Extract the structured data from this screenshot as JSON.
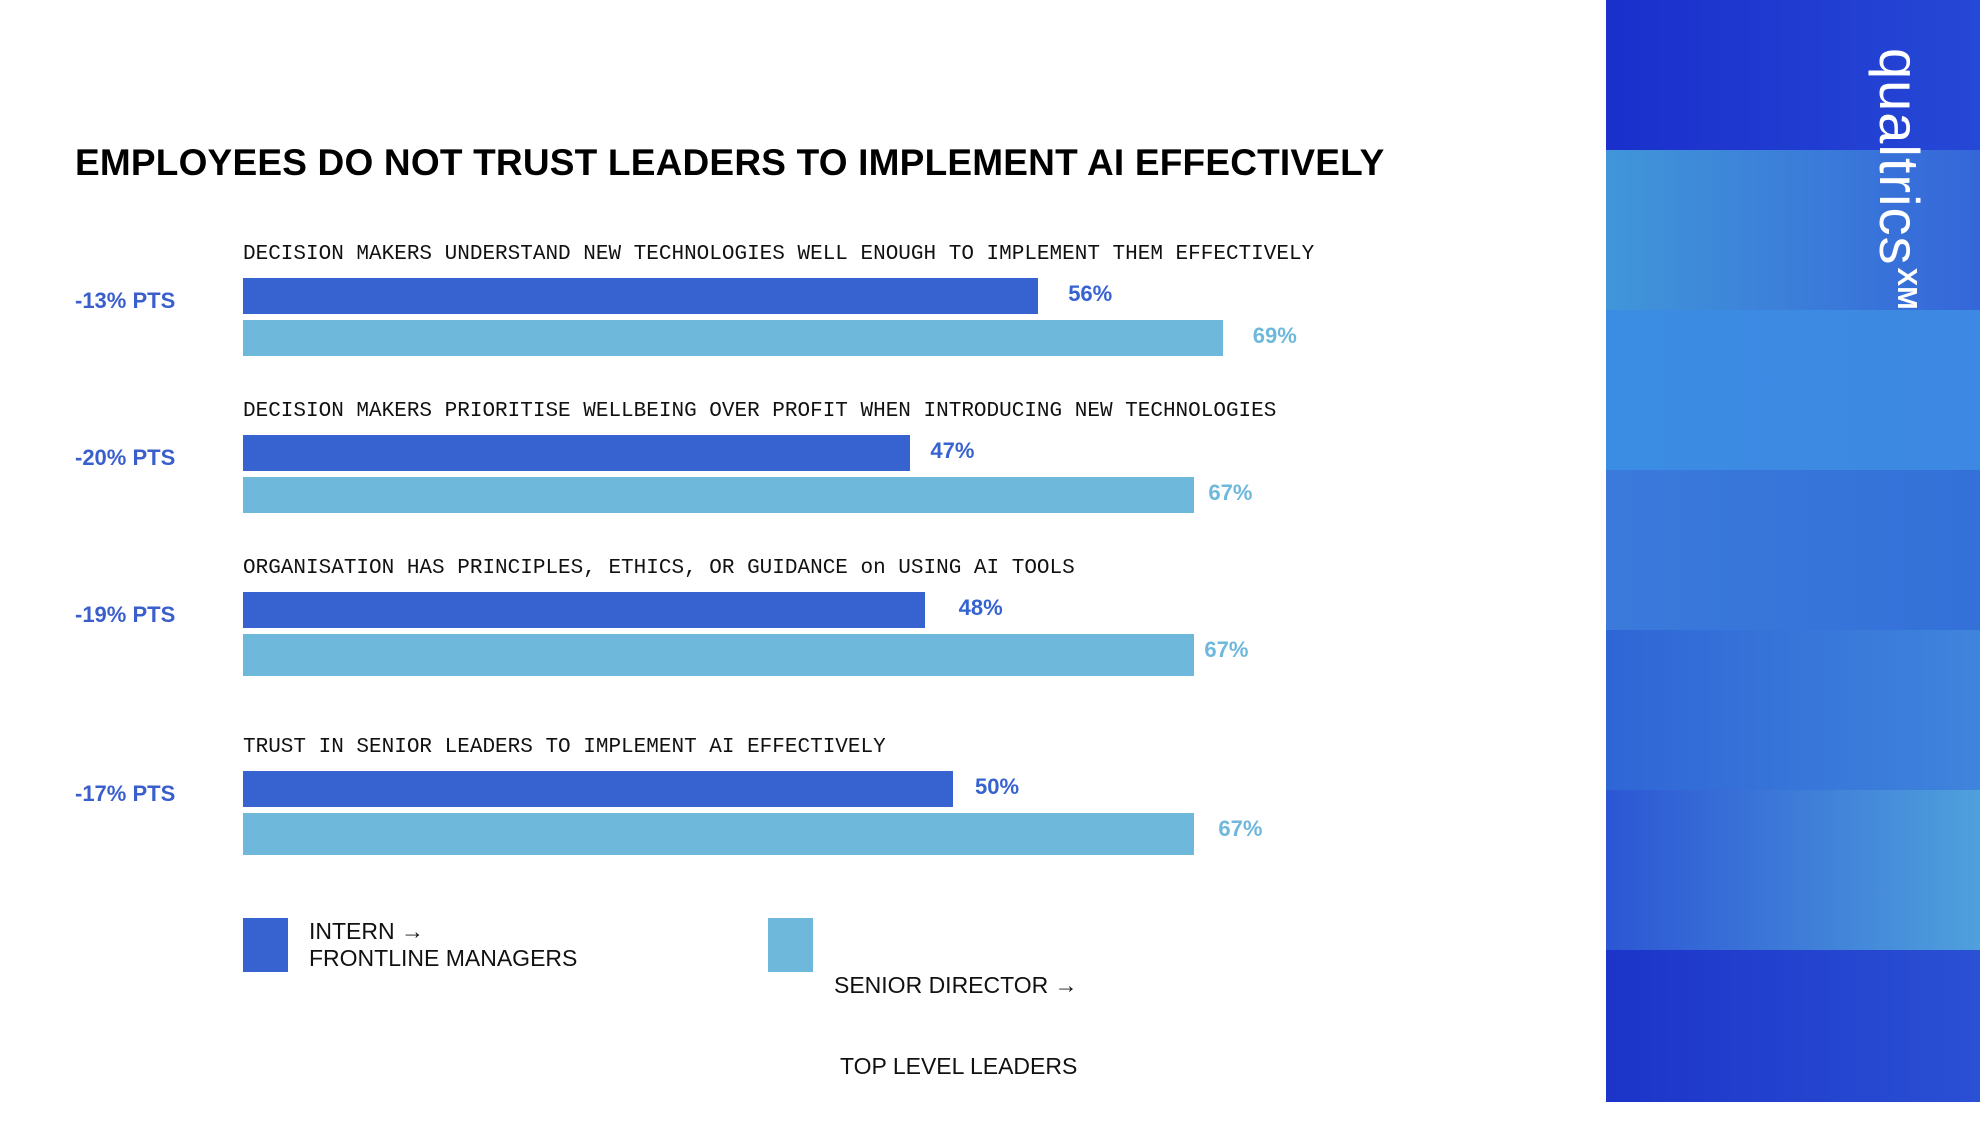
{
  "colors": {
    "primary_bar": "#3663d0",
    "secondary_bar": "#6eb8dc",
    "diff_text": "#3a5fcc",
    "panel_dark": "#1d37c8",
    "panel_light": "#3f8fe0"
  },
  "logo": {
    "word": "qualtrics",
    "mark": "XM"
  },
  "chart_data": {
    "type": "bar",
    "orientation": "horizontal",
    "title": "EMPLOYEES DO NOT TRUST LEADERS TO IMPLEMENT AI EFFECTIVELY",
    "xlim": [
      0,
      100
    ],
    "grid": false,
    "legend_position": "bottom",
    "categories": [
      "DECISION MAKERS UNDERSTAND NEW TECHNOLOGIES WELL ENOUGH TO IMPLEMENT THEM EFFECTIVELY",
      "DECISION MAKERS PRIORITISE WELLBEING OVER PROFIT WHEN INTRODUCING NEW TECHNOLOGIES",
      "ORGANISATION HAS PRINCIPLES, ETHICS, OR GUIDANCE on USING AI TOOLS",
      "TRUST IN SENIOR LEADERS TO IMPLEMENT AI EFFECTIVELY"
    ],
    "series": [
      {
        "name": "INTERN → FRONTLINE MANAGERS",
        "name_lines": [
          "INTERN →",
          "FRONTLINE MANAGERS"
        ],
        "values": [
          56,
          47,
          48,
          50
        ],
        "labels": [
          "56%",
          "47%",
          "48%",
          "50%"
        ],
        "color": "#3663d0"
      },
      {
        "name": "SENIOR DIRECTOR → TOP LEVEL LEADERS",
        "name_lines": [
          "SENIOR DIRECTOR →",
          " TOP LEVEL LEADERS"
        ],
        "values": [
          69,
          67,
          67,
          67
        ],
        "labels": [
          "69%",
          "67%",
          "67%",
          "67%"
        ],
        "color": "#6eb8dc"
      }
    ],
    "differences": [
      "-13% PTS",
      "-20% PTS",
      "-19% PTS",
      "-17% PTS"
    ]
  }
}
